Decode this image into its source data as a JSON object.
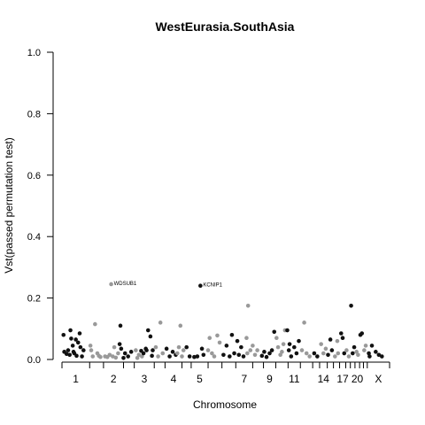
{
  "chart_data": {
    "type": "scatter",
    "title": "WestEurasia.SouthAsia",
    "xlabel": "Chromosome",
    "ylabel": "Vst(passed permutation test)",
    "ylim": [
      0,
      1
    ],
    "yticks": [
      "0.0",
      "0.2",
      "0.4",
      "0.6",
      "0.8",
      "1.0"
    ],
    "ytick_values": [
      0,
      0.2,
      0.4,
      0.6,
      0.8,
      1.0
    ],
    "grid": false,
    "colors": {
      "odd": "#111111",
      "even": "#999999"
    },
    "chromosomes": [
      {
        "label": "1",
        "start": 0,
        "end": 3.6
      },
      {
        "label": "",
        "start": 3.6,
        "end": 5.4
      },
      {
        "label": "2",
        "start": 5.4,
        "end": 8.0
      },
      {
        "label": "",
        "start": 8.0,
        "end": 9.4
      },
      {
        "label": "3",
        "start": 9.4,
        "end": 12.0
      },
      {
        "label": "",
        "start": 12.0,
        "end": 13.4
      },
      {
        "label": "4",
        "start": 13.4,
        "end": 15.6
      },
      {
        "label": "",
        "start": 15.6,
        "end": 16.8
      },
      {
        "label": "5",
        "start": 16.8,
        "end": 19.0
      },
      {
        "label": "",
        "start": 19.0,
        "end": 20.8
      },
      {
        "label": "",
        "start": 20.8,
        "end": 22.6
      },
      {
        "label": "7",
        "start": 22.6,
        "end": 24.8
      },
      {
        "label": "",
        "start": 24.8,
        "end": 26.2
      },
      {
        "label": "9",
        "start": 26.2,
        "end": 27.8
      },
      {
        "label": "",
        "start": 27.8,
        "end": 29.4
      },
      {
        "label": "11",
        "start": 29.4,
        "end": 31.0
      },
      {
        "label": "",
        "start": 31.0,
        "end": 32.6
      },
      {
        "label": "",
        "start": 32.6,
        "end": 33.5
      },
      {
        "label": "14",
        "start": 33.5,
        "end": 34.5
      },
      {
        "label": "",
        "start": 34.5,
        "end": 35.3
      },
      {
        "label": "",
        "start": 35.3,
        "end": 36.1
      },
      {
        "label": "17",
        "start": 36.1,
        "end": 36.9
      },
      {
        "label": "",
        "start": 36.9,
        "end": 37.5
      },
      {
        "label": "",
        "start": 37.5,
        "end": 38.1
      },
      {
        "label": "20",
        "start": 38.1,
        "end": 38.7
      },
      {
        "label": "",
        "start": 38.7,
        "end": 39.2
      },
      {
        "label": "",
        "start": 39.2,
        "end": 39.7
      },
      {
        "label": "X",
        "start": 39.7,
        "end": 42.6
      }
    ],
    "points": [
      {
        "x": 0.2,
        "y": 0.08,
        "c": 0
      },
      {
        "x": 0.3,
        "y": 0.025,
        "c": 0
      },
      {
        "x": 0.8,
        "y": 0.03,
        "c": 0
      },
      {
        "x": 1.1,
        "y": 0.095,
        "c": 0
      },
      {
        "x": 1.2,
        "y": 0.068,
        "c": 0
      },
      {
        "x": 1.4,
        "y": 0.045,
        "c": 0
      },
      {
        "x": 1.6,
        "y": 0.02,
        "c": 0
      },
      {
        "x": 1.8,
        "y": 0.065,
        "c": 0
      },
      {
        "x": 1.9,
        "y": 0.012,
        "c": 0
      },
      {
        "x": 2.1,
        "y": 0.055,
        "c": 0
      },
      {
        "x": 2.3,
        "y": 0.085,
        "c": 0
      },
      {
        "x": 2.4,
        "y": 0.04,
        "c": 0
      },
      {
        "x": 2.6,
        "y": 0.01,
        "c": 0
      },
      {
        "x": 1.0,
        "y": 0.015,
        "c": 0
      },
      {
        "x": 1.5,
        "y": 0.025,
        "c": 0
      },
      {
        "x": 2.8,
        "y": 0.03,
        "c": 0
      },
      {
        "x": 0.6,
        "y": 0.018,
        "c": 0
      },
      {
        "x": 3.8,
        "y": 0.03,
        "c": 1
      },
      {
        "x": 4.0,
        "y": 0.01,
        "c": 1
      },
      {
        "x": 4.3,
        "y": 0.115,
        "c": 1
      },
      {
        "x": 4.6,
        "y": 0.02,
        "c": 1
      },
      {
        "x": 5.0,
        "y": 0.008,
        "c": 1
      },
      {
        "x": 3.7,
        "y": 0.045,
        "c": 1
      },
      {
        "x": 4.8,
        "y": 0.012,
        "c": 1
      },
      {
        "x": 5.6,
        "y": 0.01,
        "c": 1
      },
      {
        "x": 5.9,
        "y": 0.008,
        "c": 1
      },
      {
        "x": 6.2,
        "y": 0.015,
        "c": 1
      },
      {
        "x": 6.4,
        "y": 0.245,
        "c": 1
      },
      {
        "x": 6.6,
        "y": 0.01,
        "c": 1
      },
      {
        "x": 7.0,
        "y": 0.006,
        "c": 1
      },
      {
        "x": 7.3,
        "y": 0.02,
        "c": 1
      },
      {
        "x": 6.8,
        "y": 0.04,
        "c": 1
      },
      {
        "x": 7.6,
        "y": 0.11,
        "c": 0
      },
      {
        "x": 7.5,
        "y": 0.05,
        "c": 0
      },
      {
        "x": 7.7,
        "y": 0.035,
        "c": 0
      },
      {
        "x": 8.2,
        "y": 0.02,
        "c": 0
      },
      {
        "x": 8.6,
        "y": 0.01,
        "c": 0
      },
      {
        "x": 9.0,
        "y": 0.025,
        "c": 0
      },
      {
        "x": 8.0,
        "y": 0.005,
        "c": 0
      },
      {
        "x": 9.6,
        "y": 0.03,
        "c": 1
      },
      {
        "x": 10.0,
        "y": 0.015,
        "c": 1
      },
      {
        "x": 10.4,
        "y": 0.01,
        "c": 1
      },
      {
        "x": 9.8,
        "y": 0.005,
        "c": 1
      },
      {
        "x": 10.6,
        "y": 0.02,
        "c": 0
      },
      {
        "x": 10.9,
        "y": 0.035,
        "c": 0
      },
      {
        "x": 11.2,
        "y": 0.095,
        "c": 0
      },
      {
        "x": 11.5,
        "y": 0.075,
        "c": 0
      },
      {
        "x": 11.0,
        "y": 0.03,
        "c": 0
      },
      {
        "x": 11.7,
        "y": 0.012,
        "c": 0
      },
      {
        "x": 11.8,
        "y": 0.03,
        "c": 0
      },
      {
        "x": 10.3,
        "y": 0.028,
        "c": 0
      },
      {
        "x": 12.2,
        "y": 0.04,
        "c": 1
      },
      {
        "x": 12.5,
        "y": 0.01,
        "c": 1
      },
      {
        "x": 12.8,
        "y": 0.12,
        "c": 1
      },
      {
        "x": 13.1,
        "y": 0.02,
        "c": 1
      },
      {
        "x": 13.6,
        "y": 0.035,
        "c": 0
      },
      {
        "x": 14.0,
        "y": 0.01,
        "c": 0
      },
      {
        "x": 14.4,
        "y": 0.025,
        "c": 0
      },
      {
        "x": 14.8,
        "y": 0.015,
        "c": 0
      },
      {
        "x": 15.0,
        "y": 0.02,
        "c": 1
      },
      {
        "x": 15.2,
        "y": 0.04,
        "c": 1
      },
      {
        "x": 15.4,
        "y": 0.11,
        "c": 1
      },
      {
        "x": 15.6,
        "y": 0.01,
        "c": 1
      },
      {
        "x": 15.8,
        "y": 0.03,
        "c": 1
      },
      {
        "x": 16.2,
        "y": 0.04,
        "c": 0
      },
      {
        "x": 16.6,
        "y": 0.01,
        "c": 0
      },
      {
        "x": 17.2,
        "y": 0.008,
        "c": 0
      },
      {
        "x": 17.6,
        "y": 0.01,
        "c": 0
      },
      {
        "x": 18.2,
        "y": 0.035,
        "c": 0
      },
      {
        "x": 18.4,
        "y": 0.015,
        "c": 0
      },
      {
        "x": 18.0,
        "y": 0.24,
        "c": 0
      },
      {
        "x": 19.2,
        "y": 0.07,
        "c": 1
      },
      {
        "x": 19.5,
        "y": 0.02,
        "c": 1
      },
      {
        "x": 19.8,
        "y": 0.01,
        "c": 1
      },
      {
        "x": 20.2,
        "y": 0.078,
        "c": 1
      },
      {
        "x": 20.5,
        "y": 0.055,
        "c": 1
      },
      {
        "x": 19.0,
        "y": 0.03,
        "c": 1
      },
      {
        "x": 21.0,
        "y": 0.015,
        "c": 0
      },
      {
        "x": 21.4,
        "y": 0.045,
        "c": 0
      },
      {
        "x": 21.8,
        "y": 0.01,
        "c": 0
      },
      {
        "x": 22.1,
        "y": 0.08,
        "c": 0
      },
      {
        "x": 22.4,
        "y": 0.02,
        "c": 0
      },
      {
        "x": 22.8,
        "y": 0.06,
        "c": 0
      },
      {
        "x": 23.0,
        "y": 0.015,
        "c": 0
      },
      {
        "x": 23.3,
        "y": 0.04,
        "c": 0
      },
      {
        "x": 23.6,
        "y": 0.01,
        "c": 0
      },
      {
        "x": 24.0,
        "y": 0.07,
        "c": 1
      },
      {
        "x": 24.2,
        "y": 0.175,
        "c": 1
      },
      {
        "x": 24.5,
        "y": 0.03,
        "c": 1
      },
      {
        "x": 24.8,
        "y": 0.045,
        "c": 1
      },
      {
        "x": 25.1,
        "y": 0.015,
        "c": 1
      },
      {
        "x": 24.1,
        "y": 0.02,
        "c": 1
      },
      {
        "x": 25.4,
        "y": 0.03,
        "c": 1
      },
      {
        "x": 26.0,
        "y": 0.012,
        "c": 0
      },
      {
        "x": 26.3,
        "y": 0.025,
        "c": 0
      },
      {
        "x": 26.6,
        "y": 0.008,
        "c": 0
      },
      {
        "x": 27.0,
        "y": 0.02,
        "c": 0
      },
      {
        "x": 27.3,
        "y": 0.03,
        "c": 0
      },
      {
        "x": 27.6,
        "y": 0.09,
        "c": 0
      },
      {
        "x": 27.9,
        "y": 0.07,
        "c": 1
      },
      {
        "x": 28.1,
        "y": 0.04,
        "c": 1
      },
      {
        "x": 28.4,
        "y": 0.015,
        "c": 1
      },
      {
        "x": 28.8,
        "y": 0.05,
        "c": 1
      },
      {
        "x": 29.0,
        "y": 0.095,
        "c": 1
      },
      {
        "x": 28.6,
        "y": 0.025,
        "c": 1
      },
      {
        "x": 29.3,
        "y": 0.095,
        "c": 0
      },
      {
        "x": 29.5,
        "y": 0.03,
        "c": 0
      },
      {
        "x": 29.8,
        "y": 0.01,
        "c": 0
      },
      {
        "x": 30.2,
        "y": 0.04,
        "c": 0
      },
      {
        "x": 30.5,
        "y": 0.02,
        "c": 0
      },
      {
        "x": 30.8,
        "y": 0.06,
        "c": 0
      },
      {
        "x": 29.6,
        "y": 0.05,
        "c": 0
      },
      {
        "x": 31.2,
        "y": 0.03,
        "c": 1
      },
      {
        "x": 31.5,
        "y": 0.12,
        "c": 1
      },
      {
        "x": 31.8,
        "y": 0.02,
        "c": 1
      },
      {
        "x": 32.2,
        "y": 0.01,
        "c": 1
      },
      {
        "x": 32.8,
        "y": 0.02,
        "c": 0
      },
      {
        "x": 33.2,
        "y": 0.01,
        "c": 0
      },
      {
        "x": 33.7,
        "y": 0.05,
        "c": 1
      },
      {
        "x": 34.0,
        "y": 0.02,
        "c": 1
      },
      {
        "x": 34.3,
        "y": 0.035,
        "c": 1
      },
      {
        "x": 34.6,
        "y": 0.015,
        "c": 0
      },
      {
        "x": 34.9,
        "y": 0.065,
        "c": 0
      },
      {
        "x": 35.1,
        "y": 0.03,
        "c": 0
      },
      {
        "x": 35.5,
        "y": 0.01,
        "c": 1
      },
      {
        "x": 35.8,
        "y": 0.06,
        "c": 1
      },
      {
        "x": 35.9,
        "y": 0.02,
        "c": 1
      },
      {
        "x": 36.3,
        "y": 0.085,
        "c": 0
      },
      {
        "x": 36.5,
        "y": 0.07,
        "c": 0
      },
      {
        "x": 36.7,
        "y": 0.02,
        "c": 0
      },
      {
        "x": 37.0,
        "y": 0.03,
        "c": 1
      },
      {
        "x": 37.3,
        "y": 0.01,
        "c": 1
      },
      {
        "x": 37.6,
        "y": 0.175,
        "c": 0
      },
      {
        "x": 37.8,
        "y": 0.02,
        "c": 0
      },
      {
        "x": 38.0,
        "y": 0.04,
        "c": 0
      },
      {
        "x": 38.3,
        "y": 0.025,
        "c": 1
      },
      {
        "x": 38.5,
        "y": 0.015,
        "c": 1
      },
      {
        "x": 38.8,
        "y": 0.08,
        "c": 0
      },
      {
        "x": 39.0,
        "y": 0.085,
        "c": 0
      },
      {
        "x": 39.3,
        "y": 0.03,
        "c": 1
      },
      {
        "x": 39.5,
        "y": 0.045,
        "c": 1
      },
      {
        "x": 39.9,
        "y": 0.02,
        "c": 0
      },
      {
        "x": 40.3,
        "y": 0.045,
        "c": 0
      },
      {
        "x": 40.8,
        "y": 0.025,
        "c": 0
      },
      {
        "x": 41.2,
        "y": 0.015,
        "c": 0
      },
      {
        "x": 41.6,
        "y": 0.01,
        "c": 0
      },
      {
        "x": 40.0,
        "y": 0.01,
        "c": 0
      }
    ],
    "annotations": [
      {
        "text": "WDSUB1",
        "x": 6.4,
        "y": 0.245
      },
      {
        "text": "KCNIP1",
        "x": 18.0,
        "y": 0.24
      }
    ]
  }
}
